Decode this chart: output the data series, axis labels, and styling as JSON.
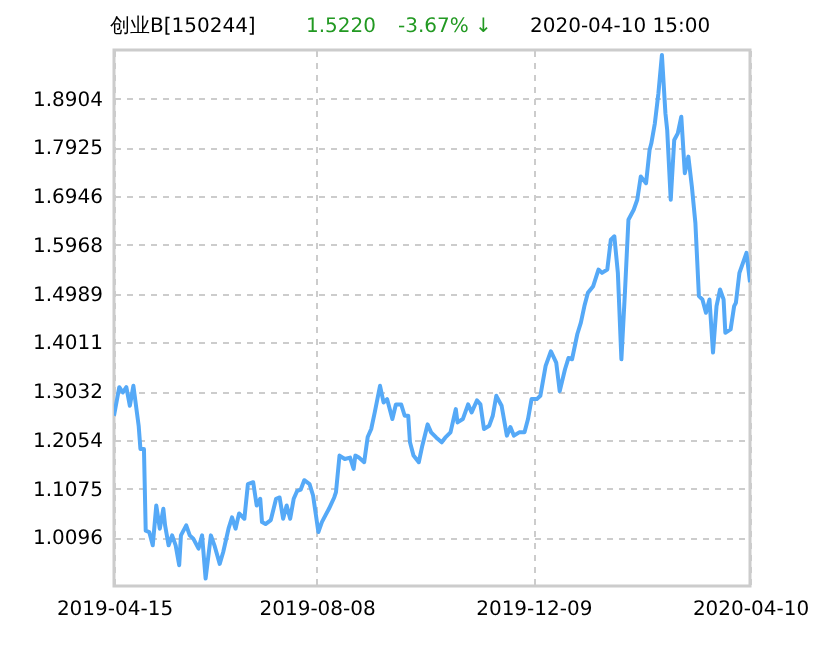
{
  "chart_data": {
    "type": "line",
    "title": "创业B[150244]",
    "annotations": [
      "1.5220",
      "-3.67% ↓",
      "2020-04-10 15:00"
    ],
    "x": [
      "2019-04-15",
      "2019-04-18",
      "2019-04-20",
      "2019-04-22",
      "2019-04-24",
      "2019-04-26",
      "2019-04-28",
      "2019-04-29",
      "2019-04-30",
      "2019-05-02",
      "2019-05-03",
      "2019-05-05",
      "2019-05-07",
      "2019-05-09",
      "2019-05-11",
      "2019-05-13",
      "2019-05-14",
      "2019-05-16",
      "2019-05-18",
      "2019-05-20",
      "2019-05-22",
      "2019-05-23",
      "2019-05-26",
      "2019-05-28",
      "2019-05-30",
      "2019-06-02",
      "2019-06-04",
      "2019-06-06",
      "2019-06-09",
      "2019-06-11",
      "2019-06-14",
      "2019-06-16",
      "2019-06-19",
      "2019-06-21",
      "2019-06-23",
      "2019-06-25",
      "2019-06-28",
      "2019-06-30",
      "2019-07-03",
      "2019-07-05",
      "2019-07-07",
      "2019-07-08",
      "2019-07-10",
      "2019-07-13",
      "2019-07-16",
      "2019-07-18",
      "2019-07-20",
      "2019-07-22",
      "2019-07-24",
      "2019-07-26",
      "2019-07-28",
      "2019-07-30",
      "2019-08-01",
      "2019-08-04",
      "2019-08-06",
      "2019-08-09",
      "2019-08-11",
      "2019-08-13",
      "2019-08-15",
      "2019-08-18",
      "2019-08-19",
      "2019-08-21",
      "2019-08-24",
      "2019-08-27",
      "2019-08-29",
      "2019-08-30",
      "2019-09-01",
      "2019-09-04",
      "2019-09-06",
      "2019-09-08",
      "2019-09-10",
      "2019-09-13",
      "2019-09-15",
      "2019-09-17",
      "2019-09-20",
      "2019-09-22",
      "2019-09-25",
      "2019-09-27",
      "2019-09-29",
      "2019-09-30",
      "2019-10-02",
      "2019-10-05",
      "2019-10-07",
      "2019-10-10",
      "2019-10-12",
      "2019-10-15",
      "2019-10-18",
      "2019-10-20",
      "2019-10-23",
      "2019-10-26",
      "2019-10-27",
      "2019-10-30",
      "2019-11-02",
      "2019-11-04",
      "2019-11-07",
      "2019-11-09",
      "2019-11-11",
      "2019-11-14",
      "2019-11-16",
      "2019-11-18",
      "2019-11-21",
      "2019-11-24",
      "2019-11-26",
      "2019-11-28",
      "2019-12-01",
      "2019-12-04",
      "2019-12-06",
      "2019-12-08",
      "2019-12-11",
      "2019-12-13",
      "2019-12-16",
      "2019-12-19",
      "2019-12-22",
      "2019-12-24",
      "2019-12-27",
      "2019-12-29",
      "2019-12-31",
      "2020-01-03",
      "2020-01-05",
      "2020-01-07",
      "2020-01-09",
      "2020-01-12",
      "2020-01-15",
      "2020-01-17",
      "2020-01-20",
      "2020-01-22",
      "2020-01-24",
      "2020-01-26",
      "2020-01-28",
      "2020-01-30",
      "2020-02-01",
      "2020-02-04",
      "2020-02-06",
      "2020-02-08",
      "2020-02-11",
      "2020-02-13",
      "2020-02-14",
      "2020-02-16",
      "2020-02-18",
      "2020-02-20",
      "2020-02-22",
      "2020-02-23",
      "2020-02-25",
      "2020-02-27",
      "2020-02-29",
      "2020-03-02",
      "2020-03-04",
      "2020-03-06",
      "2020-03-08",
      "2020-03-10",
      "2020-03-12",
      "2020-03-14",
      "2020-03-16",
      "2020-03-18",
      "2020-03-20",
      "2020-03-22",
      "2020-03-24",
      "2020-03-26",
      "2020-03-27",
      "2020-03-30",
      "2020-04-01",
      "2020-04-02",
      "2020-04-04",
      "2020-04-08",
      "2020-04-10"
    ],
    "series": [
      {
        "color": "#55a9f7",
        "values": [
          1.2537,
          1.3111,
          1.3004,
          1.3111,
          1.2737,
          1.3138,
          1.2604,
          1.2337,
          1.187,
          1.187,
          1.0228,
          1.0201,
          0.9934,
          1.0735,
          1.0268,
          1.0668,
          1.0335,
          0.9934,
          1.0134,
          0.9934,
          0.9534,
          1.0134,
          1.0335,
          1.0134,
          1.0068,
          0.9868,
          1.0134,
          0.9267,
          1.0134,
          0.9934,
          0.9561,
          0.9801,
          1.0268,
          1.0495,
          1.0268,
          1.0575,
          1.0468,
          1.1162,
          1.1202,
          1.0735,
          1.0869,
          1.0401,
          1.0361,
          1.0441,
          1.0869,
          1.0895,
          1.0468,
          1.0735,
          1.0468,
          1.0869,
          1.1029,
          1.1055,
          1.1242,
          1.1162,
          1.0935,
          1.0201,
          1.0401,
          1.0535,
          1.0668,
          1.0895,
          1.1002,
          1.1736,
          1.1669,
          1.1696,
          1.1469,
          1.1736,
          1.1696,
          1.1603,
          1.211,
          1.227,
          1.2604,
          1.3138,
          1.2804,
          1.2871,
          1.247,
          1.2764,
          1.2764,
          1.2537,
          1.2537,
          1.2003,
          1.1736,
          1.1603,
          1.1936,
          1.2363,
          1.2203,
          1.2096,
          1.2003,
          1.2096,
          1.2203,
          1.267,
          1.2403,
          1.247,
          1.2764,
          1.2604,
          1.2844,
          1.2764,
          1.227,
          1.2337,
          1.2537,
          1.2937,
          1.2737,
          1.2137,
          1.231,
          1.2137,
          1.2203,
          1.2203,
          1.247,
          1.2871,
          1.2871,
          1.2937,
          1.3538,
          1.3832,
          1.3605,
          1.3031,
          1.3471,
          1.3698,
          1.3671,
          1.4179,
          1.4406,
          1.4739,
          1.5006,
          1.514,
          1.5473,
          1.5407,
          1.5473,
          1.6074,
          1.6141,
          1.5407,
          1.3671,
          1.5006,
          1.6474,
          1.6675,
          1.6875,
          1.7342,
          1.7208,
          1.7876,
          1.8009,
          1.841,
          1.901,
          1.9784,
          1.861,
          1.8276,
          1.6875,
          1.8076,
          1.8209,
          1.8543,
          1.7409,
          1.7742,
          1.7142,
          1.6408,
          1.4939,
          1.4873,
          1.4606,
          1.4873,
          1.3805,
          1.4739,
          1.5073,
          1.4873,
          1.4205,
          1.4272,
          1.4739,
          1.4806,
          1.5407,
          1.5807,
          1.522
        ]
      }
    ],
    "xlim": [
      "2019-04-15",
      "2020-04-10"
    ],
    "xticks": [
      "2019-04-15",
      "2019-08-08",
      "2019-12-09",
      "2020-04-10"
    ],
    "ylim": [
      0.9117,
      1.9883
    ],
    "yticks": [
      1.0096,
      1.1075,
      1.2054,
      1.3032,
      1.4011,
      1.4989,
      1.5968,
      1.6946,
      1.7925,
      1.8904
    ],
    "grid": true
  }
}
